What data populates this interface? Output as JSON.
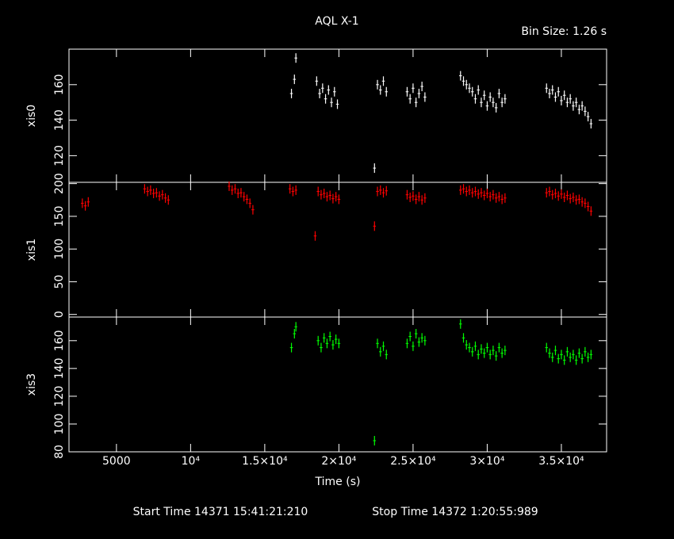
{
  "header": {
    "title": "AQL X-1",
    "bin_size": "Bin Size: 1.26 s"
  },
  "footer": {
    "start": "Start Time 14371 15:41:21:210",
    "stop": "Stop Time 14372  1:20:55:989"
  },
  "chart_data": [
    {
      "type": "scatter",
      "ylabel": "xis0",
      "xlim": [
        1800,
        38050
      ],
      "ylim": [
        105,
        180
      ],
      "yticks": [
        120,
        140,
        160
      ],
      "x": [
        16800,
        17000,
        17100,
        18500,
        18700,
        18900,
        19100,
        19300,
        19500,
        19700,
        19900,
        22400,
        22600,
        22800,
        23000,
        23200,
        24600,
        24800,
        25000,
        25200,
        25400,
        25600,
        25800,
        28200,
        28400,
        28600,
        28800,
        29000,
        29200,
        29400,
        29600,
        29800,
        30000,
        30200,
        30400,
        30600,
        30800,
        31000,
        31200,
        34000,
        34200,
        34400,
        34600,
        34800,
        35000,
        35200,
        35400,
        35600,
        35800,
        36000,
        36200,
        36400,
        36600,
        36800,
        37000
      ],
      "series": [
        {
          "color": "#ffffff",
          "values": [
            155,
            163,
            175,
            162,
            155,
            158,
            152,
            157,
            150,
            156,
            149,
            113,
            160,
            157,
            162,
            156,
            156,
            152,
            158,
            150,
            155,
            159,
            153,
            165,
            162,
            160,
            158,
            156,
            152,
            157,
            150,
            154,
            148,
            153,
            150,
            147,
            155,
            150,
            152,
            158,
            155,
            157,
            153,
            156,
            151,
            154,
            150,
            152,
            148,
            150,
            146,
            148,
            145,
            142,
            138
          ]
        }
      ]
    },
    {
      "type": "scatter",
      "ylabel": "xis1",
      "xlim": [
        1800,
        38050
      ],
      "ylim": [
        -4,
        202
      ],
      "yticks": [
        0,
        50,
        100,
        150,
        200
      ],
      "x": [
        2700,
        2900,
        3100,
        6900,
        7100,
        7300,
        7500,
        7700,
        7900,
        8100,
        8300,
        8500,
        12600,
        12800,
        13000,
        13200,
        13400,
        13600,
        13800,
        14000,
        14200,
        16700,
        16900,
        17100,
        18400,
        18600,
        18800,
        19000,
        19200,
        19400,
        19600,
        19800,
        20000,
        22400,
        22600,
        22800,
        23000,
        23200,
        24600,
        24800,
        25000,
        25200,
        25400,
        25600,
        25800,
        28200,
        28400,
        28600,
        28800,
        29000,
        29200,
        29400,
        29600,
        29800,
        30000,
        30200,
        30400,
        30600,
        30800,
        31000,
        31200,
        34000,
        34200,
        34400,
        34600,
        34800,
        35000,
        35200,
        35400,
        35600,
        35800,
        36000,
        36200,
        36400,
        36600,
        36800,
        37000
      ],
      "series": [
        {
          "color": "#ff0000",
          "values": [
            170,
            166,
            172,
            192,
            188,
            190,
            185,
            186,
            181,
            183,
            178,
            175,
            196,
            190,
            192,
            185,
            186,
            180,
            176,
            170,
            160,
            192,
            188,
            190,
            120,
            188,
            183,
            185,
            180,
            182,
            177,
            180,
            176,
            135,
            188,
            190,
            186,
            189,
            183,
            179,
            181,
            176,
            180,
            175,
            178,
            190,
            192,
            188,
            190,
            186,
            188,
            184,
            186,
            182,
            185,
            180,
            183,
            178,
            180,
            176,
            178,
            186,
            188,
            183,
            185,
            181,
            184,
            179,
            182,
            177,
            179,
            175,
            176,
            172,
            170,
            165,
            158
          ]
        }
      ]
    },
    {
      "type": "scatter",
      "ylabel": "xis3",
      "xlabel": "Time (s)",
      "xlim": [
        1800,
        38050
      ],
      "ylim": [
        80,
        177
      ],
      "yticks": [
        80,
        100,
        120,
        140,
        160
      ],
      "xticks": [
        5000,
        {
          "value": 10000,
          "label": "10⁴"
        },
        {
          "value": 15000,
          "label": "1.5×10⁴"
        },
        {
          "value": 20000,
          "label": "2×10⁴"
        },
        {
          "value": 25000,
          "label": "2.5×10⁴"
        },
        {
          "value": 30000,
          "label": "3×10⁴"
        },
        {
          "value": 35000,
          "label": "3.5×10⁴"
        }
      ],
      "x": [
        16800,
        17000,
        17100,
        18600,
        18800,
        19000,
        19200,
        19400,
        19600,
        19800,
        20000,
        22400,
        22600,
        22800,
        23000,
        23200,
        24600,
        24800,
        25000,
        25200,
        25400,
        25600,
        25800,
        28200,
        28400,
        28600,
        28800,
        29000,
        29200,
        29400,
        29600,
        29800,
        30000,
        30200,
        30400,
        30600,
        30800,
        31000,
        31200,
        34000,
        34200,
        34400,
        34600,
        34800,
        35000,
        35200,
        35400,
        35600,
        35800,
        36000,
        36200,
        36400,
        36600,
        36800,
        37000
      ],
      "series": [
        {
          "color": "#00ff00",
          "values": [
            155,
            165,
            170,
            160,
            155,
            162,
            158,
            163,
            157,
            161,
            158,
            88,
            158,
            152,
            156,
            150,
            158,
            163,
            156,
            165,
            159,
            162,
            160,
            172,
            162,
            157,
            155,
            152,
            156,
            150,
            154,
            151,
            155,
            150,
            153,
            149,
            155,
            151,
            153,
            155,
            151,
            148,
            153,
            147,
            150,
            146,
            152,
            148,
            150,
            146,
            151,
            147,
            152,
            148,
            150
          ]
        }
      ]
    }
  ]
}
